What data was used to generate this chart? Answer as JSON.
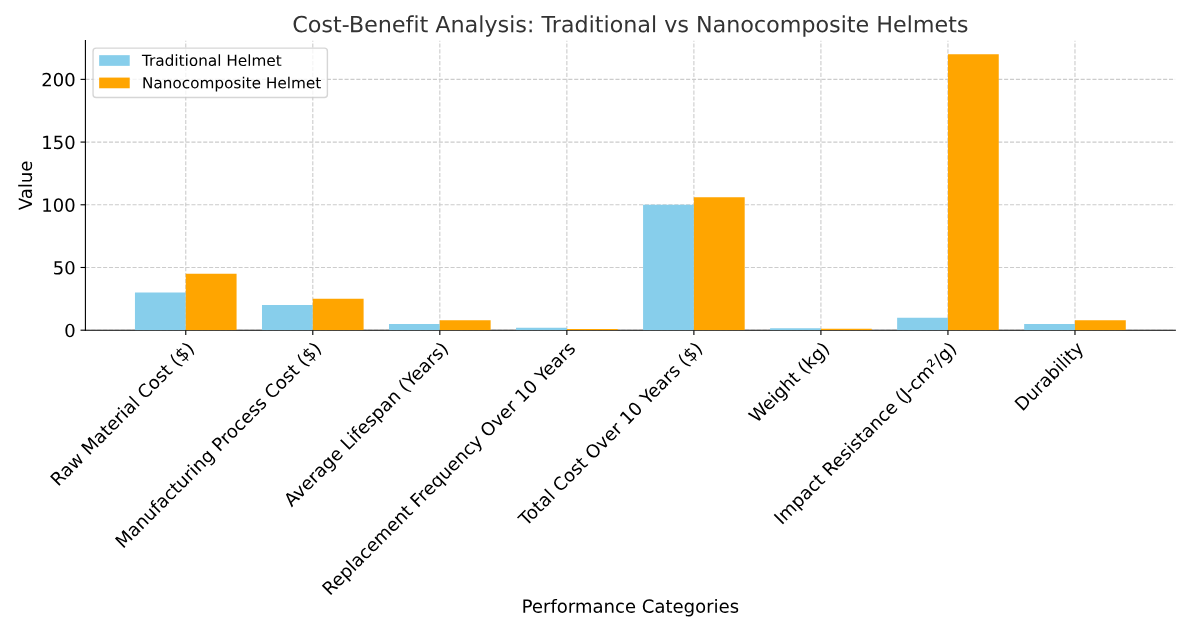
{
  "chart_data": {
    "type": "bar",
    "title": "Cost-Benefit Analysis: Traditional vs Nanocomposite Helmets",
    "xlabel": "Performance Categories",
    "ylabel": "Value",
    "categories": [
      "Raw Material Cost ($)",
      "Manufacturing Process Cost ($)",
      "Average Lifespan (Years)",
      "Replacement Frequency Over 10 Years",
      "Total Cost Over 10 Years ($)",
      "Weight (kg)",
      "Impact Resistance (J-cm²/g)",
      "Durability"
    ],
    "series": [
      {
        "name": "Traditional Helmet",
        "color": "#87ceeb",
        "values": [
          30,
          20,
          5,
          2,
          100,
          1.5,
          10,
          5
        ]
      },
      {
        "name": "Nanocomposite Helmet",
        "color": "#ffa500",
        "values": [
          45,
          25,
          8,
          1,
          106,
          1.2,
          220,
          8
        ]
      }
    ],
    "ylim": [
      0,
      231
    ],
    "yticks": [
      0,
      50,
      100,
      150,
      200
    ],
    "grid": true,
    "legend": "top left"
  }
}
